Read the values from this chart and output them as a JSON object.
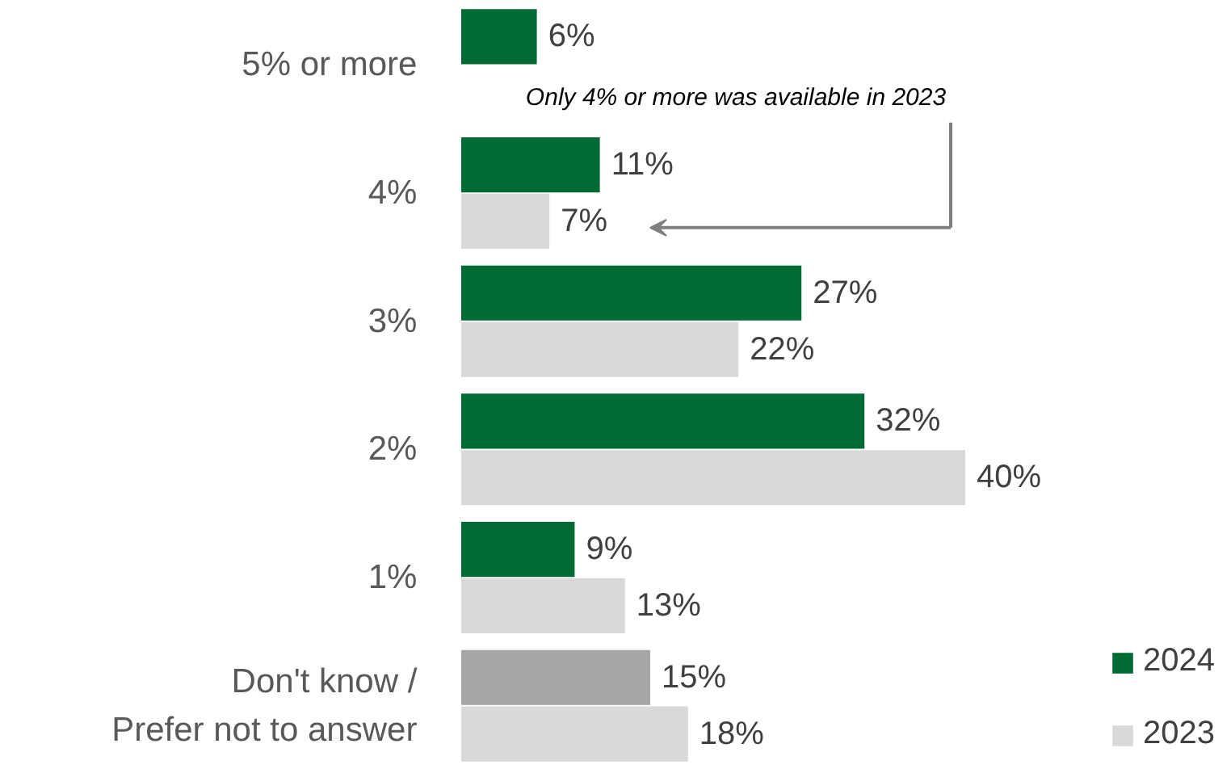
{
  "chart_data": {
    "type": "bar",
    "orientation": "horizontal",
    "categories": [
      "5% or more",
      "4%",
      "3%",
      "2%",
      "1%",
      "Don't know /\nPrefer not to answer"
    ],
    "series": [
      {
        "name": "2024",
        "color": "#006a35",
        "colors": [
          "#006a35",
          "#006a35",
          "#006a35",
          "#006a35",
          "#006a35",
          "#a6a6a6"
        ],
        "values": [
          6,
          11,
          27,
          32,
          9,
          15
        ],
        "value_labels": [
          "6%",
          "11%",
          "27%",
          "32%",
          "9%",
          "15%"
        ]
      },
      {
        "name": "2023",
        "color": "#d9d9d9",
        "values": [
          null,
          7,
          22,
          40,
          13,
          18
        ],
        "value_labels": [
          null,
          "7%",
          "22%",
          "40%",
          "13%",
          "18%"
        ]
      }
    ],
    "annotations": [
      "Only 4% or more was available in 2023"
    ],
    "legend": "bottom right",
    "grid": false
  }
}
